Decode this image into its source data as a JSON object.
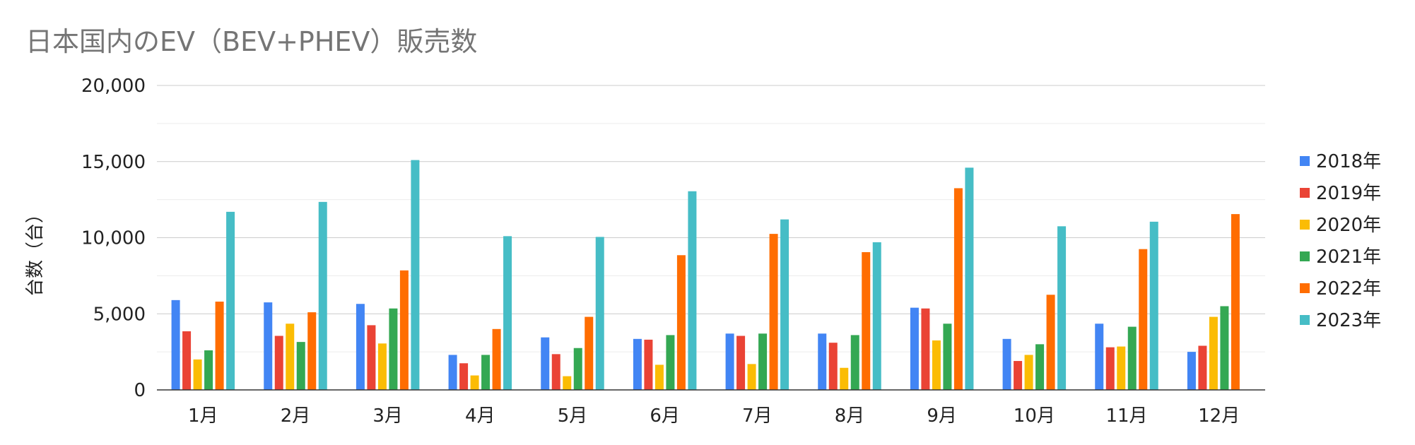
{
  "chart_data": {
    "type": "bar",
    "title": "日本国内のEV（BEV+PHEV）販売数",
    "xlabel": "",
    "ylabel": "台数（台）",
    "ylim": [
      0,
      20000
    ],
    "yticks": [
      0,
      5000,
      10000,
      15000,
      20000
    ],
    "ytick_labels": [
      "0",
      "5,000",
      "10,000",
      "15,000",
      "20,000"
    ],
    "grid": true,
    "legend_position": "right",
    "categories": [
      "1月",
      "2月",
      "3月",
      "4月",
      "5月",
      "6月",
      "7月",
      "8月",
      "9月",
      "10月",
      "11月",
      "12月"
    ],
    "series": [
      {
        "name": "2018年",
        "color": "#4285F4",
        "values": [
          5900,
          5750,
          5650,
          2300,
          3450,
          3350,
          3700,
          3700,
          5400,
          3350,
          4350,
          2500
        ]
      },
      {
        "name": "2019年",
        "color": "#EA4335",
        "values": [
          3850,
          3550,
          4250,
          1750,
          2350,
          3300,
          3550,
          3100,
          5350,
          1900,
          2800,
          2900
        ]
      },
      {
        "name": "2020年",
        "color": "#FBBC04",
        "values": [
          2000,
          4350,
          3050,
          950,
          900,
          1650,
          1700,
          1450,
          3250,
          2300,
          2850,
          4800
        ]
      },
      {
        "name": "2021年",
        "color": "#34A853",
        "values": [
          2600,
          3150,
          5350,
          2300,
          2750,
          3600,
          3700,
          3600,
          4350,
          3000,
          4150,
          5500
        ]
      },
      {
        "name": "2022年",
        "color": "#FF6D01",
        "values": [
          5800,
          5100,
          7850,
          4000,
          4800,
          8850,
          10250,
          9050,
          13250,
          6250,
          9250,
          11550
        ]
      },
      {
        "name": "2023年",
        "color": "#46BDC6",
        "values": [
          11700,
          12350,
          15100,
          10100,
          10050,
          13050,
          11200,
          9700,
          14600,
          10750,
          11050,
          null
        ]
      }
    ]
  }
}
